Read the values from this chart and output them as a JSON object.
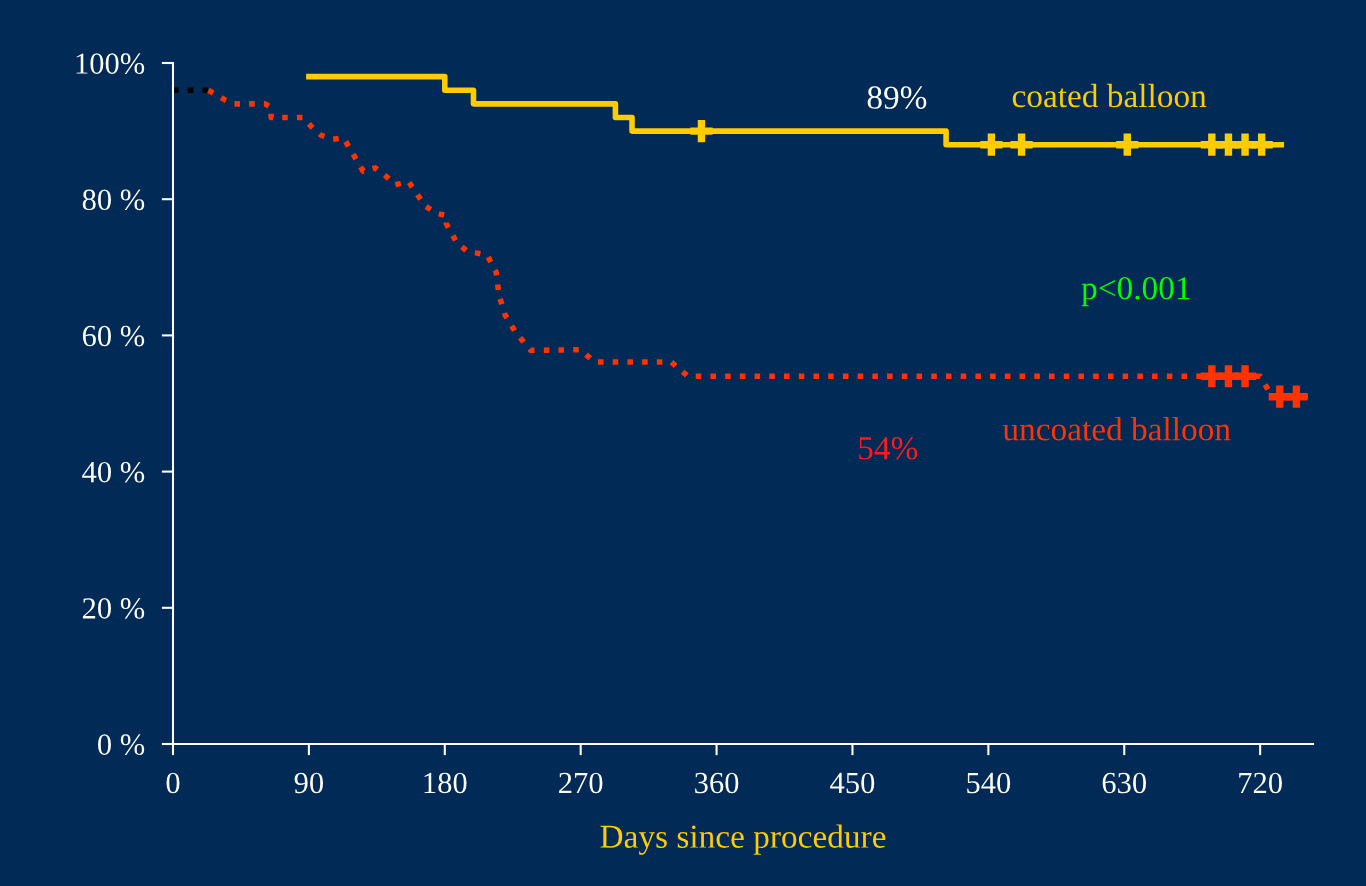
{
  "chart_data": {
    "type": "line",
    "xlabel": "Days since procedure",
    "series": [
      {
        "name": "coated balloon",
        "type": "step",
        "color": "#ffcc00",
        "line_style": "solid",
        "x": [
          90,
          180,
          199,
          293,
          304,
          512,
          734
        ],
        "values": [
          98,
          96,
          94,
          92,
          90,
          88,
          88
        ]
      },
      {
        "type": "scatter",
        "color": "#ffcc00",
        "marker": "cross",
        "x": [
          350,
          542,
          562,
          632,
          688,
          699,
          710,
          721
        ],
        "values": [
          90,
          88,
          88,
          88,
          88,
          88,
          88,
          88
        ]
      },
      {
        "color": "#000000",
        "line_style": "dotted",
        "x": [
          0,
          23.5
        ],
        "values": [
          96,
          96
        ]
      },
      {
        "name": "uncoated balloon",
        "color": "#ff3300",
        "line_style": "dotted",
        "x": [
          23.5,
          35,
          40,
          61,
          65,
          65,
          86,
          91.5,
          98,
          106,
          113,
          122,
          126,
          134,
          142,
          147,
          156,
          167,
          175,
          181,
          181,
          188,
          194.5,
          208,
          214,
          216,
          220,
          227,
          237,
          270,
          279,
          330,
          341,
          720,
          728,
          754
        ],
        "values": [
          96,
          94.5,
          94,
          94,
          93.5,
          92,
          92,
          90.7,
          89.4,
          88.8,
          89,
          85.6,
          84.1,
          84.6,
          83.2,
          82.1,
          82.6,
          79,
          77.9,
          77.6,
          76.4,
          73.6,
          72.4,
          71.8,
          69.3,
          65.8,
          63,
          60.4,
          57.8,
          57.9,
          56.1,
          56.1,
          54,
          54,
          51,
          51
        ]
      },
      {
        "type": "scatter",
        "color": "#ff3300",
        "marker": "cross",
        "x": [
          688,
          699,
          710,
          733,
          744
        ],
        "values": [
          54,
          54,
          54,
          51,
          51
        ]
      }
    ],
    "xlim": [
      0,
      755
    ],
    "xticks": [
      0,
      90,
      180,
      270,
      360,
      450,
      540,
      630,
      720
    ],
    "ylim": [
      0,
      100
    ],
    "yticks": [
      {
        "value": 0,
        "label": "0 %"
      },
      {
        "value": 20,
        "label": "20 %"
      },
      {
        "value": 40,
        "label": "40 %"
      },
      {
        "value": 60,
        "label": "60 %"
      },
      {
        "value": 80,
        "label": "80 %"
      },
      {
        "value": 100,
        "label": "100%"
      }
    ],
    "annotations": [
      "89%",
      "p<0.001",
      "54%"
    ],
    "grid": false,
    "legend": "right"
  }
}
